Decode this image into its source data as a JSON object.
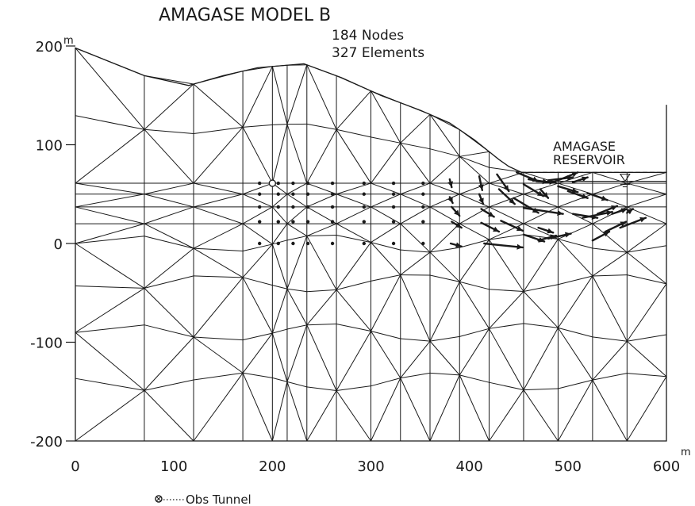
{
  "title": "AMAGASE  MODEL B",
  "stats": {
    "nodes": "184 Nodes",
    "elements": "327 Elements"
  },
  "reservoir_label": [
    "AMAGASE",
    "RESERVOIR"
  ],
  "legend": {
    "obs_tunnel": "Obs  Tunnel"
  },
  "axes": {
    "y_ticks": [
      {
        "value": 200,
        "label": "200",
        "unit": "m"
      },
      {
        "value": 100,
        "label": "100"
      },
      {
        "value": 0,
        "label": "0"
      },
      {
        "value": -100,
        "label": "-100"
      },
      {
        "value": -200,
        "label": "-200"
      }
    ],
    "x_ticks": [
      {
        "value": 0,
        "label": "0"
      },
      {
        "value": 100,
        "label": "100"
      },
      {
        "value": 200,
        "label": "200"
      },
      {
        "value": 300,
        "label": "300"
      },
      {
        "value": 400,
        "label": "400"
      },
      {
        "value": 500,
        "label": "500"
      },
      {
        "value": 600,
        "label": "600",
        "unit": "m"
      }
    ],
    "xlim": [
      0,
      600
    ],
    "ylim": [
      -200,
      200
    ]
  },
  "surface_profile": [
    [
      0,
      198
    ],
    [
      70,
      170
    ],
    [
      115,
      160
    ],
    [
      150,
      170
    ],
    [
      185,
      178
    ],
    [
      232,
      182
    ],
    [
      270,
      168
    ],
    [
      310,
      150
    ],
    [
      350,
      135
    ],
    [
      380,
      122
    ],
    [
      405,
      105
    ],
    [
      430,
      85
    ],
    [
      440,
      78
    ],
    [
      453,
      72
    ],
    [
      600,
      72
    ]
  ],
  "reservoir": {
    "dashed_level": 72,
    "water_level": 63
  },
  "obs_tunnel": [
    200,
    61
  ],
  "displacement_vectors": [
    [
      186,
      61,
      187,
      61
    ],
    [
      186,
      50,
      187,
      50
    ],
    [
      186,
      37,
      187,
      37
    ],
    [
      186,
      22,
      187,
      22
    ],
    [
      186,
      0,
      187,
      0
    ],
    [
      205,
      61,
      206,
      61
    ],
    [
      205,
      50,
      206,
      50
    ],
    [
      205,
      37,
      206,
      37
    ],
    [
      205,
      22,
      206,
      22
    ],
    [
      205,
      0,
      206,
      0
    ],
    [
      220,
      61,
      221,
      61
    ],
    [
      220,
      50,
      221,
      50
    ],
    [
      220,
      37,
      221,
      37
    ],
    [
      220,
      22,
      221,
      22
    ],
    [
      220,
      0,
      221,
      0
    ],
    [
      235,
      61,
      236,
      61
    ],
    [
      235,
      50,
      236,
      50
    ],
    [
      235,
      37,
      236,
      37
    ],
    [
      235,
      22,
      236,
      22
    ],
    [
      235,
      0,
      236,
      0
    ],
    [
      260,
      61,
      261,
      61
    ],
    [
      260,
      50,
      261,
      50
    ],
    [
      260,
      37,
      261,
      37
    ],
    [
      260,
      22,
      261,
      22
    ],
    [
      260,
      0,
      261,
      0
    ],
    [
      292,
      61,
      293,
      61
    ],
    [
      292,
      50,
      293,
      50
    ],
    [
      292,
      37,
      293,
      37
    ],
    [
      292,
      22,
      293,
      22
    ],
    [
      292,
      0,
      293,
      0
    ],
    [
      322,
      61,
      323,
      61
    ],
    [
      322,
      50,
      323,
      50
    ],
    [
      322,
      37,
      323,
      37
    ],
    [
      322,
      22,
      323,
      22
    ],
    [
      322,
      0,
      323,
      0
    ],
    [
      352,
      61,
      353,
      61
    ],
    [
      352,
      50,
      353,
      50
    ],
    [
      352,
      37,
      353,
      37
    ],
    [
      352,
      22,
      353,
      22
    ],
    [
      352,
      0,
      353,
      0
    ],
    [
      380,
      65,
      382,
      57
    ],
    [
      380,
      47,
      383,
      41
    ],
    [
      382,
      37,
      390,
      28
    ],
    [
      382,
      22,
      392,
      16
    ],
    [
      381,
      0,
      392,
      -3
    ],
    [
      410,
      68,
      413,
      54
    ],
    [
      410,
      50,
      414,
      40
    ],
    [
      412,
      35,
      425,
      27
    ],
    [
      412,
      21,
      430,
      12
    ],
    [
      415,
      0,
      454,
      -4
    ],
    [
      428,
      70,
      440,
      53
    ],
    [
      430,
      55,
      446,
      40
    ],
    [
      445,
      46,
      470,
      31
    ],
    [
      432,
      23,
      454,
      13
    ],
    [
      455,
      9,
      476,
      2
    ],
    [
      448,
      72,
      470,
      63
    ],
    [
      455,
      60,
      475,
      48
    ],
    [
      472,
      55,
      480,
      46
    ],
    [
      455,
      36,
      495,
      30
    ],
    [
      470,
      16,
      485,
      11
    ],
    [
      460,
      65,
      480,
      62
    ],
    [
      468,
      63,
      487,
      62
    ],
    [
      480,
      64,
      505,
      67
    ],
    [
      485,
      62,
      510,
      72
    ],
    [
      505,
      62,
      520,
      67
    ],
    [
      490,
      58,
      510,
      52
    ],
    [
      500,
      53,
      520,
      46
    ],
    [
      520,
      51,
      540,
      44
    ],
    [
      505,
      30,
      530,
      26
    ],
    [
      515,
      26,
      545,
      32
    ],
    [
      530,
      30,
      550,
      38
    ],
    [
      545,
      30,
      560,
      35
    ],
    [
      560,
      31,
      566,
      35
    ],
    [
      480,
      5,
      503,
      10
    ],
    [
      525,
      3,
      542,
      12
    ],
    [
      538,
      12,
      559,
      22
    ],
    [
      553,
      16,
      579,
      26
    ],
    [
      470,
      3,
      488,
      8
    ]
  ],
  "vector_color": "#1a1a1a"
}
